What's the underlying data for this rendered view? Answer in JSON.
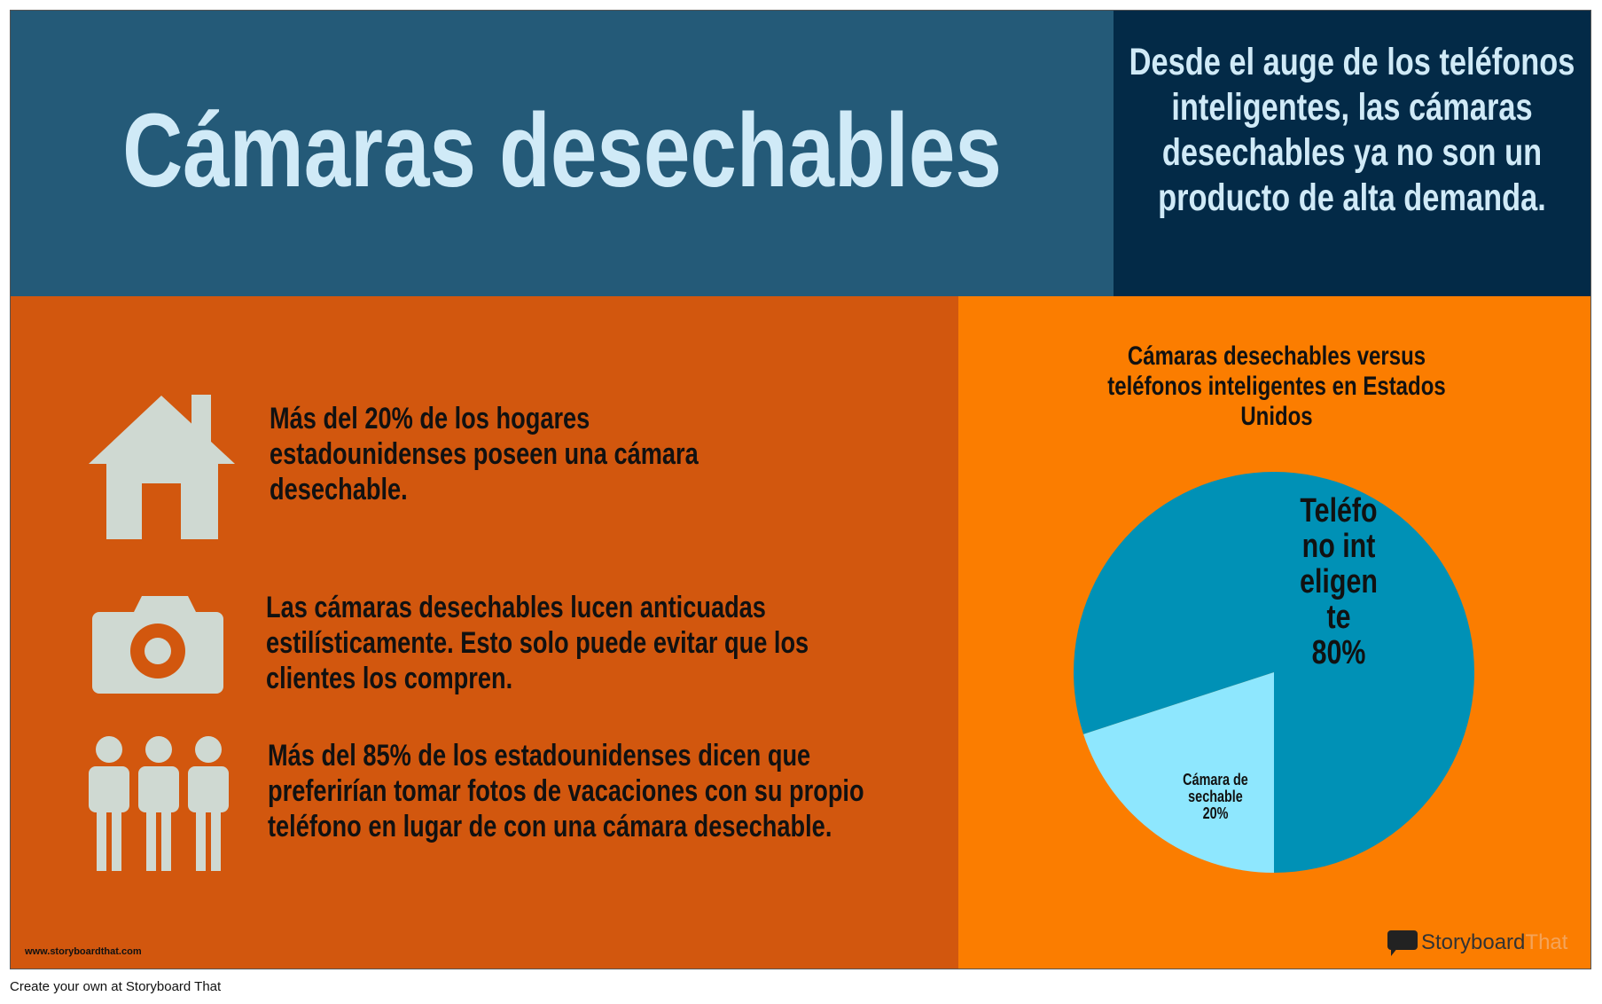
{
  "header": {
    "title": "Cámaras desechables",
    "intro": "Desde el auge de los teléfonos inteligentes, las cámaras desechables ya no son un producto de alta demanda."
  },
  "facts": [
    "Más del 20% de los hogares estadounidenses poseen una cámara desechable.",
    "Las cámaras desechables lucen anticuadas estilísticamente. Esto solo puede evitar que los clientes los compren.",
    "Más del 85% de los estadounidenses dicen que preferirían tomar fotos de vacaciones con su propio teléfono en lugar de con una cámara desechable."
  ],
  "chart_data": {
    "type": "pie",
    "title": "Cámaras desechables versus teléfonos inteligentes en Estados Unidos",
    "categories": [
      "Teléfono inteligente",
      "Cámara desechable"
    ],
    "values": [
      80,
      20
    ],
    "value_labels": [
      "80%",
      "20%"
    ],
    "colors": [
      "#0091b6",
      "#8ee7fe"
    ]
  },
  "footer": {
    "site": "www.storyboardthat.com",
    "brand": "Storyboard",
    "brand_suffix": "That",
    "credit": "Create your own at Storyboard That"
  }
}
